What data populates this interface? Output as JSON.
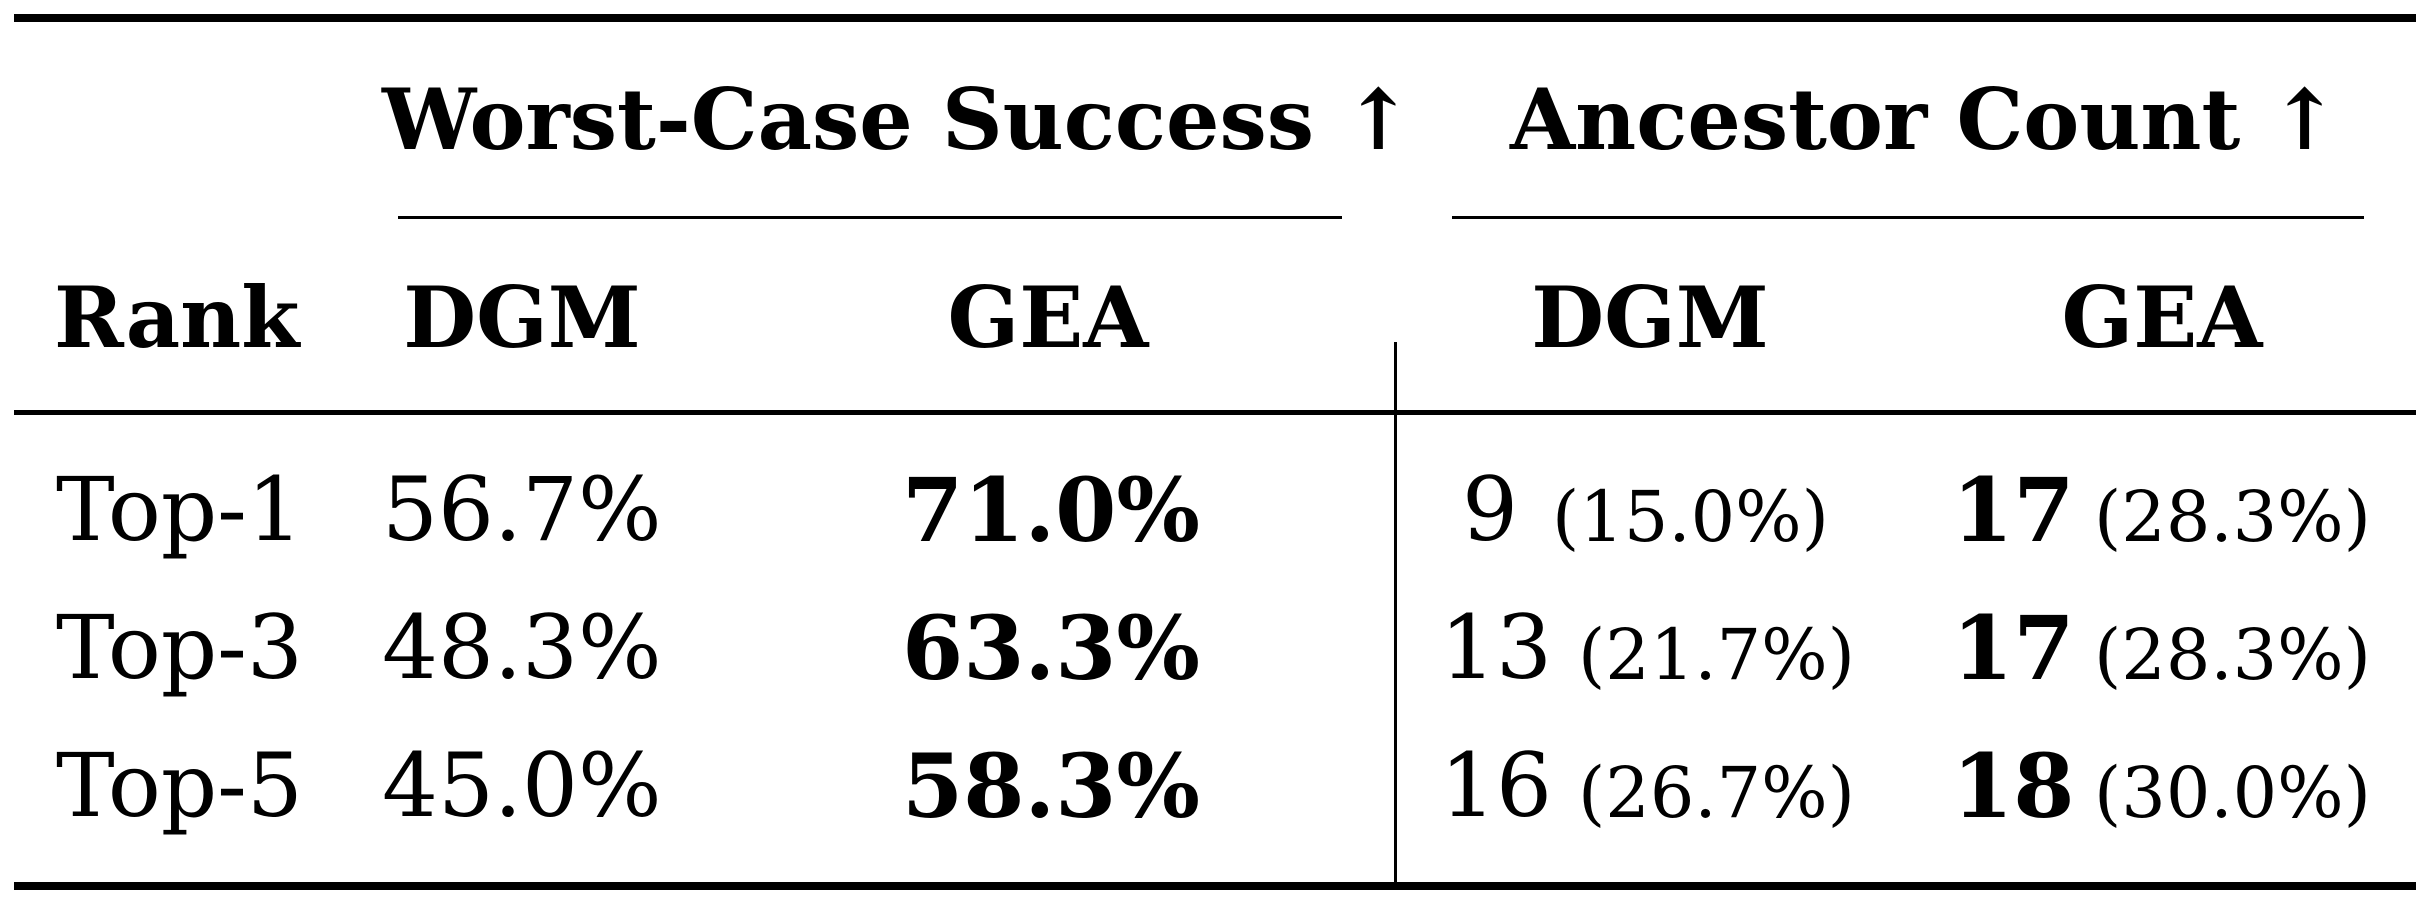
{
  "table": {
    "groups": [
      {
        "label": "Worst-Case Success ↑"
      },
      {
        "label": "Ancestor Count ↑"
      }
    ],
    "columns": {
      "rank": "Rank",
      "wc_dgm": "DGM",
      "wc_gea": "GEA",
      "ac_dgm": "DGM",
      "ac_gea": "GEA"
    },
    "rows": [
      {
        "rank": "Top-1",
        "wc_dgm": "56.7%",
        "wc_gea": "71.0%",
        "ac_dgm_count": "9",
        "ac_dgm_pct": "(15.0%)",
        "ac_gea_count": "17",
        "ac_gea_pct": "(28.3%)"
      },
      {
        "rank": "Top-3",
        "wc_dgm": "48.3%",
        "wc_gea": "63.3%",
        "ac_dgm_count": "13",
        "ac_dgm_pct": "(21.7%)",
        "ac_gea_count": "17",
        "ac_gea_pct": "(28.3%)"
      },
      {
        "rank": "Top-5",
        "wc_dgm": "45.0%",
        "wc_gea": "58.3%",
        "ac_dgm_count": "16",
        "ac_dgm_pct": "(26.7%)",
        "ac_gea_count": "18",
        "ac_gea_pct": "(30.0%)"
      }
    ]
  }
}
